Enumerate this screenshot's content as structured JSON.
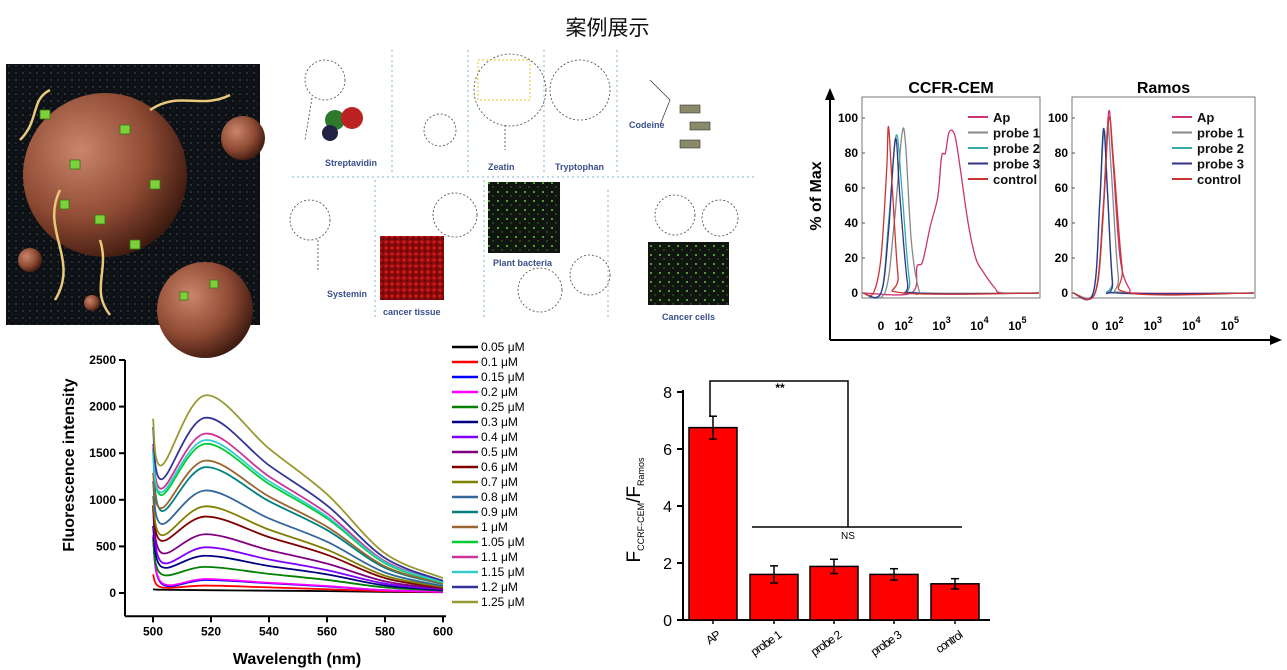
{
  "page": {
    "title": "案例展示"
  },
  "collage": {
    "labels": [
      "Streptavidin",
      "Zeatin",
      "Tryptophan",
      "Codeine",
      "Systemin",
      "cancer tissue",
      "Plant bacteria",
      "Cancer cells"
    ]
  },
  "chart_data": [
    {
      "type": "line",
      "xlabel": "Wavelength (nm)",
      "ylabel": "Fluorescence intensity",
      "xlim": [
        490,
        600
      ],
      "ylim": [
        -250,
        2500
      ],
      "xticks": [
        "500",
        "520",
        "540",
        "560",
        "580",
        "600"
      ],
      "yticks": [
        "0",
        "500",
        "1000",
        "1500",
        "2000",
        "2500"
      ],
      "legend": "right",
      "x": [
        500,
        503,
        518,
        540,
        560,
        580,
        600
      ],
      "series": [
        {
          "name": "0.05 μM",
          "color": "#000000",
          "values": [
            40,
            35,
            30,
            25,
            20,
            12,
            8
          ]
        },
        {
          "name": "0.1 μM",
          "color": "#ff0000",
          "values": [
            200,
            60,
            80,
            60,
            40,
            20,
            10
          ]
        },
        {
          "name": "0.15 μM",
          "color": "#0000ff",
          "values": [
            600,
            100,
            140,
            105,
            70,
            30,
            12
          ]
        },
        {
          "name": "0.2 μM",
          "color": "#ff00ff",
          "values": [
            620,
            110,
            150,
            110,
            75,
            30,
            12
          ]
        },
        {
          "name": "0.25 μM",
          "color": "#008000",
          "values": [
            580,
            200,
            280,
            205,
            140,
            60,
            25
          ]
        },
        {
          "name": "0.3 μM",
          "color": "#000080",
          "values": [
            720,
            280,
            400,
            290,
            200,
            80,
            30
          ]
        },
        {
          "name": "0.4 μM",
          "color": "#8000ff",
          "values": [
            900,
            330,
            490,
            360,
            245,
            100,
            40
          ]
        },
        {
          "name": "0.5 μM",
          "color": "#800080",
          "values": [
            930,
            430,
            630,
            460,
            315,
            125,
            45
          ]
        },
        {
          "name": "0.6 μM",
          "color": "#800000",
          "values": [
            940,
            560,
            820,
            600,
            410,
            160,
            55
          ]
        },
        {
          "name": "0.7 μM",
          "color": "#808000",
          "values": [
            1040,
            620,
            930,
            680,
            465,
            185,
            65
          ]
        },
        {
          "name": "0.8 μM",
          "color": "#336699",
          "values": [
            1200,
            740,
            1100,
            800,
            550,
            220,
            75
          ]
        },
        {
          "name": "0.9 μM",
          "color": "#008080",
          "values": [
            1520,
            880,
            1350,
            985,
            675,
            270,
            95
          ]
        },
        {
          "name": "1 μM",
          "color": "#996633",
          "values": [
            1290,
            910,
            1420,
            1035,
            710,
            285,
            100
          ]
        },
        {
          "name": "1.05 μM",
          "color": "#00cc33",
          "values": [
            1550,
            1050,
            1600,
            1170,
            800,
            320,
            110
          ]
        },
        {
          "name": "1.1 μM",
          "color": "#cc3399",
          "values": [
            1600,
            1120,
            1710,
            1250,
            855,
            340,
            120
          ]
        },
        {
          "name": "1.15 μM",
          "color": "#33cccc",
          "values": [
            1520,
            1080,
            1640,
            1200,
            820,
            330,
            115
          ]
        },
        {
          "name": "1.2 μM",
          "color": "#333399",
          "values": [
            1780,
            1220,
            1880,
            1370,
            940,
            375,
            130
          ]
        },
        {
          "name": "1.25 μM",
          "color": "#999933",
          "values": [
            1870,
            1370,
            2120,
            1550,
            1060,
            425,
            160
          ]
        }
      ]
    },
    {
      "type": "bar",
      "ylabel": "F",
      "ylabel_sub": "CCRF-CEM",
      "ylabel_mid": "/F",
      "ylabel_sub2": "Ramos",
      "ylim": [
        0,
        8
      ],
      "yticks": [
        "0",
        "2",
        "4",
        "6",
        "8"
      ],
      "categories": [
        "AP",
        "probe 1",
        "probe 2",
        "probe 3",
        "control"
      ],
      "values": [
        6.75,
        1.6,
        1.88,
        1.6,
        1.27
      ],
      "errors": [
        0.4,
        0.3,
        0.25,
        0.2,
        0.18
      ],
      "color": "#ff0000",
      "annotations": {
        "significant": "**",
        "not_significant": "NS"
      }
    },
    {
      "type": "line",
      "title": "CCFR-CEM",
      "ylabel": "% of Max",
      "x_scale": "log",
      "ylim": [
        0,
        100
      ],
      "yticks": [
        "0",
        "20",
        "40",
        "60",
        "80",
        "100"
      ],
      "xticks": [
        {
          "label": "0",
          "log": 1.4
        },
        {
          "label": "10",
          "exp": "2",
          "log": 2
        },
        {
          "label": "10",
          "exp": "3",
          "log": 3
        },
        {
          "label": "10",
          "exp": "4",
          "log": 4
        },
        {
          "label": "10",
          "exp": "5",
          "log": 5
        }
      ],
      "legend": "top-right",
      "series": [
        {
          "name": "Ap",
          "color": "#cc3377",
          "points": [
            [
              2.2,
              0
            ],
            [
              2.35,
              15
            ],
            [
              2.5,
              18
            ],
            [
              2.7,
              38
            ],
            [
              2.9,
              55
            ],
            [
              3.0,
              78
            ],
            [
              3.1,
              80
            ],
            [
              3.2,
              92
            ],
            [
              3.35,
              90
            ],
            [
              3.5,
              70
            ],
            [
              3.7,
              40
            ],
            [
              3.9,
              20
            ],
            [
              4.1,
              12
            ],
            [
              4.4,
              3
            ],
            [
              4.6,
              0
            ]
          ]
        },
        {
          "name": "probe 1",
          "color": "#888888",
          "points": [
            [
              1.5,
              0
            ],
            [
              1.75,
              40
            ],
            [
              1.95,
              90
            ],
            [
              2.05,
              85
            ],
            [
              2.2,
              30
            ],
            [
              2.4,
              2
            ],
            [
              2.6,
              0
            ]
          ]
        },
        {
          "name": "probe 2",
          "color": "#33aaaa",
          "points": [
            [
              1.4,
              0
            ],
            [
              1.6,
              40
            ],
            [
              1.8,
              90
            ],
            [
              1.95,
              60
            ],
            [
              2.15,
              8
            ],
            [
              2.4,
              0
            ]
          ]
        },
        {
          "name": "probe 3",
          "color": "#333388",
          "points": [
            [
              1.4,
              0
            ],
            [
              1.6,
              35
            ],
            [
              1.78,
              88
            ],
            [
              1.9,
              55
            ],
            [
              2.1,
              6
            ],
            [
              2.3,
              0
            ]
          ]
        },
        {
          "name": "control",
          "color": "#cc3333",
          "points": [
            [
              1.2,
              0
            ],
            [
              1.4,
              20
            ],
            [
              1.55,
              70
            ],
            [
              1.6,
              95
            ],
            [
              1.7,
              60
            ],
            [
              1.85,
              10
            ],
            [
              2.0,
              0
            ]
          ]
        }
      ]
    },
    {
      "type": "line",
      "title": "Ramos",
      "x_scale": "log",
      "ylim": [
        0,
        100
      ],
      "yticks": [
        "0",
        "20",
        "40",
        "60",
        "80",
        "100"
      ],
      "xticks": [
        {
          "label": "0",
          "log": 1.5
        },
        {
          "label": "10",
          "exp": "2",
          "log": 2
        },
        {
          "label": "10",
          "exp": "3",
          "log": 3
        },
        {
          "label": "10",
          "exp": "4",
          "log": 4
        },
        {
          "label": "10",
          "exp": "5",
          "log": 5
        }
      ],
      "legend": "top-right",
      "series": [
        {
          "name": "Ap",
          "color": "#cc3377",
          "points": [
            [
              1.5,
              0
            ],
            [
              1.7,
              45
            ],
            [
              1.85,
              103
            ],
            [
              1.95,
              80
            ],
            [
              2.15,
              20
            ],
            [
              2.4,
              2
            ],
            [
              2.6,
              0
            ]
          ]
        },
        {
          "name": "probe 1",
          "color": "#888888",
          "points": [
            [
              1.5,
              0
            ],
            [
              1.7,
              40
            ],
            [
              1.82,
              95
            ],
            [
              1.92,
              70
            ],
            [
              2.1,
              10
            ],
            [
              2.3,
              0
            ]
          ]
        },
        {
          "name": "probe 2",
          "color": "#33aaaa",
          "points": [
            [
              1.45,
              0
            ],
            [
              1.62,
              50
            ],
            [
              1.73,
              93
            ],
            [
              1.82,
              60
            ],
            [
              1.95,
              8
            ],
            [
              2.1,
              0
            ]
          ]
        },
        {
          "name": "probe 3",
          "color": "#333388",
          "points": [
            [
              1.45,
              0
            ],
            [
              1.62,
              52
            ],
            [
              1.72,
              94
            ],
            [
              1.82,
              58
            ],
            [
              1.95,
              6
            ],
            [
              2.1,
              0
            ]
          ]
        },
        {
          "name": "control",
          "color": "#cc3333",
          "points": [
            [
              1.5,
              0
            ],
            [
              1.72,
              50
            ],
            [
              1.86,
              100
            ],
            [
              1.98,
              75
            ],
            [
              2.2,
              15
            ],
            [
              2.4,
              0
            ]
          ]
        }
      ]
    }
  ]
}
